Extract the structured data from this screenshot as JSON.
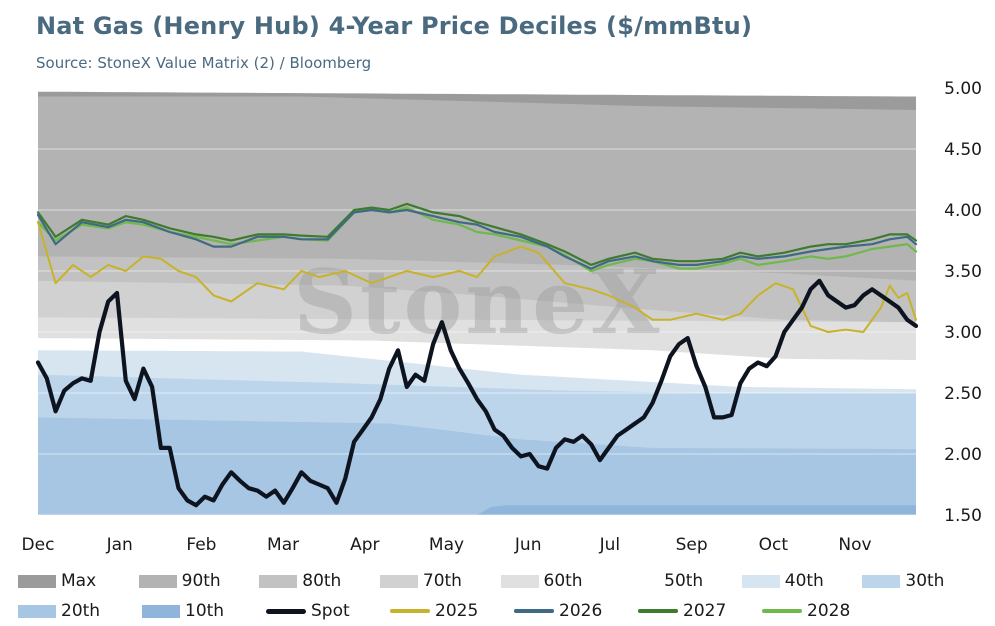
{
  "title": "Nat Gas (Henry Hub) 4-Year Price Deciles ($/mmBtu)",
  "subtitle": "Source: StoneX Value Matrix (2) / Bloomberg",
  "watermark": "StoneX",
  "chart_data": {
    "type": "area",
    "title": "Nat Gas (Henry Hub) 4-Year Price Deciles ($/mmBtu)",
    "subtitle": "Source: StoneX Value Matrix (2) / Bloomberg",
    "x_categories": [
      "Dec",
      "Jan",
      "Feb",
      "Mar",
      "Apr",
      "May",
      "Jun",
      "Jul",
      "Sep",
      "Oct",
      "Nov"
    ],
    "ylim": [
      1.5,
      5.0
    ],
    "y_ticks": [
      "1.50",
      "2.00",
      "2.50",
      "3.00",
      "3.50",
      "4.00",
      "4.50",
      "5.00"
    ],
    "y_axis_side": "right",
    "grid": true,
    "legend_position": "bottom",
    "decile_bands": [
      {
        "name": "Max",
        "color": "#9b9b9b",
        "t": [
          0,
          1
        ],
        "v": [
          4.97,
          4.93
        ]
      },
      {
        "name": "90th",
        "color": "#b3b3b3",
        "t": [
          0,
          0.3,
          0.7,
          1
        ],
        "v": [
          4.93,
          4.93,
          4.85,
          4.82
        ]
      },
      {
        "name": "80th",
        "color": "#c2c2c2",
        "t": [
          0,
          0.35,
          0.6,
          0.85,
          1
        ],
        "v": [
          3.62,
          3.6,
          3.55,
          3.48,
          3.42
        ]
      },
      {
        "name": "70th",
        "color": "#d1d1d1",
        "t": [
          0,
          0.35,
          0.5,
          0.7,
          0.85,
          1
        ],
        "v": [
          3.42,
          3.38,
          3.3,
          3.18,
          3.1,
          3.08
        ]
      },
      {
        "name": "60th",
        "color": "#e0e0e0",
        "t": [
          0,
          1
        ],
        "v": [
          3.12,
          3.08
        ]
      },
      {
        "name": "50th",
        "color": "#ffffff",
        "t": [
          0,
          0.38,
          0.7,
          0.85,
          1
        ],
        "v": [
          2.95,
          2.93,
          2.85,
          2.78,
          2.77
        ]
      },
      {
        "name": "40th",
        "color": "#d7e5f1",
        "t": [
          0,
          0.3,
          0.55,
          0.8,
          1
        ],
        "v": [
          2.85,
          2.84,
          2.65,
          2.55,
          2.53
        ]
      },
      {
        "name": "30th",
        "color": "#bdd5ea",
        "t": [
          0,
          0.35,
          0.6,
          0.75,
          1
        ],
        "v": [
          2.65,
          2.58,
          2.52,
          2.5,
          2.5
        ]
      },
      {
        "name": "20th",
        "color": "#a7c6e3",
        "t": [
          0,
          0.4,
          0.55,
          0.7,
          1
        ],
        "v": [
          2.3,
          2.25,
          2.12,
          2.05,
          2.04
        ]
      },
      {
        "name": "10th",
        "color": "#8fb5da",
        "t": [
          0,
          0.5,
          0.52,
          1
        ],
        "v": [
          1.5,
          1.5,
          1.58,
          1.58
        ]
      }
    ],
    "series": [
      {
        "name": "2028",
        "color": "#6fb84a",
        "width": 2.2,
        "t": [
          0,
          0.02,
          0.05,
          0.08,
          0.1,
          0.12,
          0.15,
          0.18,
          0.2,
          0.22,
          0.25,
          0.28,
          0.3,
          0.33,
          0.36,
          0.38,
          0.4,
          0.42,
          0.45,
          0.48,
          0.5,
          0.52,
          0.55,
          0.58,
          0.6,
          0.63,
          0.65,
          0.68,
          0.7,
          0.73,
          0.75,
          0.78,
          0.8,
          0.82,
          0.85,
          0.88,
          0.9,
          0.92,
          0.95,
          0.97,
          0.99,
          1
        ],
        "v": [
          3.9,
          3.75,
          3.88,
          3.85,
          3.9,
          3.88,
          3.82,
          3.78,
          3.75,
          3.72,
          3.75,
          3.78,
          3.76,
          3.75,
          3.98,
          4.0,
          3.98,
          4.02,
          3.92,
          3.88,
          3.82,
          3.8,
          3.75,
          3.7,
          3.63,
          3.5,
          3.55,
          3.6,
          3.58,
          3.52,
          3.52,
          3.56,
          3.6,
          3.55,
          3.58,
          3.62,
          3.6,
          3.62,
          3.68,
          3.7,
          3.72,
          3.66
        ]
      },
      {
        "name": "2027",
        "color": "#3f7b2e",
        "width": 2.2,
        "t": [
          0,
          0.02,
          0.05,
          0.08,
          0.1,
          0.12,
          0.15,
          0.18,
          0.2,
          0.22,
          0.25,
          0.28,
          0.3,
          0.33,
          0.36,
          0.38,
          0.4,
          0.42,
          0.45,
          0.48,
          0.5,
          0.52,
          0.55,
          0.58,
          0.6,
          0.63,
          0.65,
          0.68,
          0.7,
          0.73,
          0.75,
          0.78,
          0.8,
          0.82,
          0.85,
          0.88,
          0.9,
          0.92,
          0.95,
          0.97,
          0.99,
          1
        ],
        "v": [
          3.98,
          3.78,
          3.92,
          3.88,
          3.95,
          3.92,
          3.85,
          3.8,
          3.78,
          3.75,
          3.8,
          3.8,
          3.79,
          3.78,
          4.0,
          4.02,
          4.0,
          4.05,
          3.98,
          3.95,
          3.9,
          3.86,
          3.8,
          3.72,
          3.66,
          3.55,
          3.6,
          3.65,
          3.6,
          3.58,
          3.58,
          3.6,
          3.65,
          3.62,
          3.65,
          3.7,
          3.72,
          3.72,
          3.76,
          3.8,
          3.8,
          3.75
        ]
      },
      {
        "name": "2026",
        "color": "#3f6984",
        "width": 2.2,
        "t": [
          0,
          0.02,
          0.05,
          0.08,
          0.1,
          0.12,
          0.15,
          0.18,
          0.2,
          0.22,
          0.25,
          0.28,
          0.3,
          0.33,
          0.36,
          0.38,
          0.4,
          0.42,
          0.45,
          0.48,
          0.5,
          0.52,
          0.55,
          0.58,
          0.6,
          0.63,
          0.65,
          0.68,
          0.7,
          0.73,
          0.75,
          0.78,
          0.8,
          0.82,
          0.85,
          0.88,
          0.9,
          0.92,
          0.95,
          0.97,
          0.99,
          1
        ],
        "v": [
          3.96,
          3.72,
          3.9,
          3.86,
          3.92,
          3.9,
          3.82,
          3.76,
          3.7,
          3.7,
          3.78,
          3.78,
          3.76,
          3.76,
          3.98,
          4.0,
          3.98,
          4.0,
          3.95,
          3.9,
          3.88,
          3.82,
          3.78,
          3.7,
          3.62,
          3.52,
          3.58,
          3.62,
          3.58,
          3.55,
          3.55,
          3.58,
          3.62,
          3.6,
          3.62,
          3.66,
          3.68,
          3.7,
          3.72,
          3.76,
          3.78,
          3.72
        ]
      },
      {
        "name": "2025",
        "color": "#c8b22a",
        "width": 2.0,
        "t": [
          0,
          0.02,
          0.04,
          0.06,
          0.08,
          0.1,
          0.12,
          0.14,
          0.16,
          0.18,
          0.2,
          0.22,
          0.25,
          0.28,
          0.3,
          0.32,
          0.35,
          0.38,
          0.4,
          0.42,
          0.45,
          0.48,
          0.5,
          0.52,
          0.55,
          0.57,
          0.6,
          0.63,
          0.65,
          0.68,
          0.7,
          0.72,
          0.75,
          0.78,
          0.8,
          0.82,
          0.84,
          0.86,
          0.88,
          0.9,
          0.92,
          0.94,
          0.95,
          0.96,
          0.97,
          0.98,
          0.99,
          1
        ],
        "v": [
          3.9,
          3.4,
          3.55,
          3.45,
          3.55,
          3.5,
          3.62,
          3.6,
          3.5,
          3.45,
          3.3,
          3.25,
          3.4,
          3.35,
          3.5,
          3.45,
          3.5,
          3.4,
          3.45,
          3.5,
          3.45,
          3.5,
          3.45,
          3.62,
          3.7,
          3.65,
          3.4,
          3.35,
          3.3,
          3.2,
          3.1,
          3.1,
          3.15,
          3.1,
          3.15,
          3.3,
          3.4,
          3.35,
          3.05,
          3.0,
          3.02,
          3.0,
          3.1,
          3.2,
          3.38,
          3.28,
          3.32,
          3.1
        ]
      },
      {
        "name": "Spot",
        "color": "#0d1420",
        "width": 4.2,
        "t": [
          0,
          0.01,
          0.02,
          0.03,
          0.04,
          0.05,
          0.06,
          0.07,
          0.08,
          0.09,
          0.1,
          0.11,
          0.12,
          0.13,
          0.14,
          0.15,
          0.16,
          0.17,
          0.18,
          0.19,
          0.2,
          0.21,
          0.22,
          0.23,
          0.24,
          0.25,
          0.26,
          0.27,
          0.28,
          0.29,
          0.3,
          0.31,
          0.32,
          0.33,
          0.34,
          0.35,
          0.36,
          0.37,
          0.38,
          0.39,
          0.4,
          0.41,
          0.42,
          0.43,
          0.44,
          0.45,
          0.46,
          0.47,
          0.48,
          0.49,
          0.5,
          0.51,
          0.52,
          0.53,
          0.54,
          0.55,
          0.56,
          0.57,
          0.58,
          0.59,
          0.6,
          0.61,
          0.62,
          0.63,
          0.64,
          0.65,
          0.66,
          0.67,
          0.68,
          0.69,
          0.7,
          0.71,
          0.72,
          0.73,
          0.74,
          0.75,
          0.76,
          0.77,
          0.78,
          0.79,
          0.8,
          0.81,
          0.82,
          0.83,
          0.84,
          0.85,
          0.86,
          0.87,
          0.88,
          0.89,
          0.9,
          0.91,
          0.92,
          0.93,
          0.94,
          0.95,
          0.96,
          0.97,
          0.98,
          0.99,
          1
        ],
        "v": [
          2.75,
          2.62,
          2.35,
          2.52,
          2.58,
          2.62,
          2.6,
          3.0,
          3.25,
          3.32,
          2.6,
          2.45,
          2.7,
          2.55,
          2.05,
          2.05,
          1.72,
          1.62,
          1.58,
          1.65,
          1.62,
          1.75,
          1.85,
          1.78,
          1.72,
          1.7,
          1.65,
          1.7,
          1.6,
          1.72,
          1.85,
          1.78,
          1.75,
          1.72,
          1.6,
          1.8,
          2.1,
          2.2,
          2.3,
          2.45,
          2.7,
          2.85,
          2.55,
          2.65,
          2.6,
          2.9,
          3.08,
          2.85,
          2.7,
          2.58,
          2.45,
          2.35,
          2.2,
          2.15,
          2.05,
          1.98,
          2.0,
          1.9,
          1.88,
          2.05,
          2.12,
          2.1,
          2.15,
          2.08,
          1.95,
          2.05,
          2.15,
          2.2,
          2.25,
          2.3,
          2.42,
          2.6,
          2.8,
          2.9,
          2.95,
          2.72,
          2.55,
          2.3,
          2.3,
          2.32,
          2.58,
          2.7,
          2.75,
          2.72,
          2.8,
          3.0,
          3.1,
          3.2,
          3.35,
          3.42,
          3.3,
          3.25,
          3.2,
          3.22,
          3.3,
          3.35,
          3.3,
          3.25,
          3.2,
          3.1,
          3.05
        ]
      }
    ]
  },
  "legend": {
    "row1": [
      {
        "label": "Max",
        "color": "#9b9b9b",
        "kind": "area"
      },
      {
        "label": "90th",
        "color": "#b3b3b3",
        "kind": "area"
      },
      {
        "label": "80th",
        "color": "#c2c2c2",
        "kind": "area"
      },
      {
        "label": "70th",
        "color": "#d1d1d1",
        "kind": "area"
      },
      {
        "label": "60th",
        "color": "#e0e0e0",
        "kind": "area"
      },
      {
        "label": "50th",
        "color": "#ffffff",
        "kind": "area"
      },
      {
        "label": "40th",
        "color": "#d7e5f1",
        "kind": "area"
      },
      {
        "label": "30th",
        "color": "#bdd5ea",
        "kind": "area"
      }
    ],
    "row2": [
      {
        "label": "20th",
        "color": "#a7c6e3",
        "kind": "area"
      },
      {
        "label": "10th",
        "color": "#8fb5da",
        "kind": "area"
      },
      {
        "label": "Spot",
        "color": "#0d1420",
        "kind": "line"
      },
      {
        "label": "2025",
        "color": "#c8b22a",
        "kind": "line"
      },
      {
        "label": "2026",
        "color": "#3f6984",
        "kind": "line"
      },
      {
        "label": "2027",
        "color": "#3f7b2e",
        "kind": "line"
      },
      {
        "label": "2028",
        "color": "#6fb84a",
        "kind": "line"
      }
    ]
  }
}
